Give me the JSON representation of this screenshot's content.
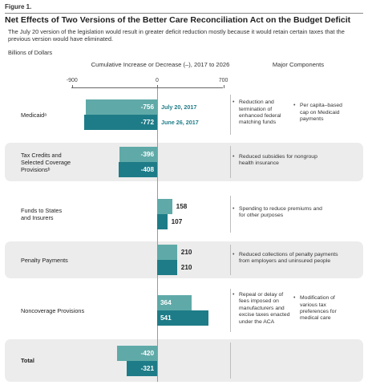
{
  "figure_label": "Figure 1.",
  "title": "Net Effects of Two Versions of the Better Care Reconciliation Act on the Budget Deficit",
  "subtitle": "The July 20 version of the legislation would result in greater deficit reduction mostly because it would retain certain taxes that the previous version would have eliminated.",
  "units": "Billions of Dollars",
  "column_heads": {
    "chart": "Cumulative Increase or Decrease (–), 2017 to 2026",
    "components": "Major Components"
  },
  "chart_data": {
    "type": "bar",
    "orientation": "horizontal",
    "xlim": [
      -900,
      700
    ],
    "ticks": [
      "-900",
      "0",
      "700"
    ],
    "categories": [
      "Medicaidᵃ",
      "Tax Credits and Selected Coverage Provisionsᵇ",
      "Funds to States and Insurers",
      "Penalty Payments",
      "Noncoverage Provisions",
      "Total"
    ],
    "series": [
      {
        "name": "July 20, 2017",
        "color": "#5faaa8",
        "values": [
          -756,
          -396,
          158,
          210,
          364,
          -420
        ]
      },
      {
        "name": "June 26, 2017",
        "color": "#1e7c88",
        "values": [
          -772,
          -408,
          107,
          210,
          541,
          -321
        ]
      }
    ],
    "value_labels": [
      [
        "-756",
        "-772"
      ],
      [
        "-396",
        "-408"
      ],
      [
        "158",
        "107"
      ],
      [
        "210",
        "210"
      ],
      [
        "364",
        "541"
      ],
      [
        "-420",
        "-321"
      ]
    ]
  },
  "rows": [
    {
      "label_lines": [
        "Medicaidᵃ"
      ],
      "components": [
        [
          "Reduction and",
          "termination of",
          "enhanced federal",
          "matching funds"
        ],
        [
          "Per capita–based",
          "cap on Medicaid",
          "payments"
        ]
      ]
    },
    {
      "label_lines": [
        "Tax Credits and",
        "Selected Coverage",
        "Provisionsᵇ"
      ],
      "components": [
        [
          "Reduced subsidies for nongroup",
          "health insurance"
        ]
      ]
    },
    {
      "label_lines": [
        "Funds to States",
        "and Insurers"
      ],
      "components": [
        [
          "Spending to reduce premiums and",
          "for other purposes"
        ]
      ]
    },
    {
      "label_lines": [
        "Penalty Payments"
      ],
      "components": [
        [
          "Reduced collections of penalty payments",
          "from employers and uninsured people"
        ]
      ]
    },
    {
      "label_lines": [
        "Noncoverage Provisions"
      ],
      "components": [
        [
          "Repeal or delay of",
          "fees imposed on",
          "manufacturers and",
          "excise taxes enacted",
          "under the ACA"
        ],
        [
          "Modification of",
          "various tax",
          "preferences for",
          "medical care"
        ]
      ]
    },
    {
      "label_lines": [
        "Total"
      ],
      "components": []
    }
  ]
}
